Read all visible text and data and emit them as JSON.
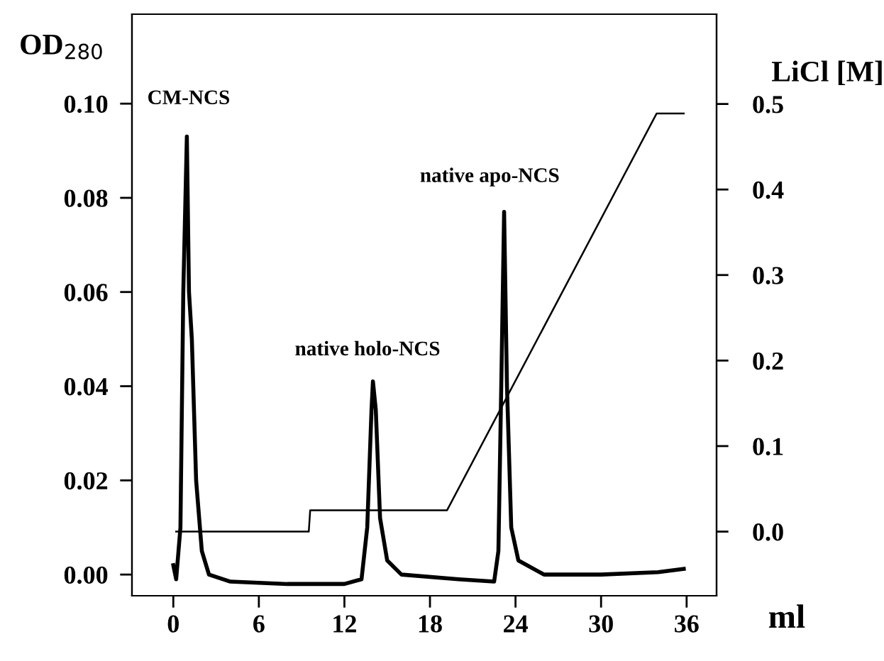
{
  "chart_data": {
    "type": "line",
    "xlabel": "ml",
    "ylabel": "OD$_{280}$",
    "y2label": "LiCl [M]",
    "xlim": [
      -2.9,
      38.1
    ],
    "xticks": [
      0,
      6,
      12,
      18,
      24,
      30,
      36
    ],
    "ylim": [
      -0.0045,
      0.119
    ],
    "yticks": [
      {
        "value": 0,
        "label": "0.00"
      },
      {
        "value": 0.02,
        "label": "0.02"
      },
      {
        "value": 0.04,
        "label": "0.04"
      },
      {
        "value": 0.06,
        "label": "0.06"
      },
      {
        "value": 0.08,
        "label": "0.08"
      },
      {
        "value": 0.1,
        "label": "0.10"
      }
    ],
    "y2lim": [
      -0.075,
      0.605
    ],
    "y2ticks": [
      {
        "value": 0,
        "label": "0.0"
      },
      {
        "value": 0.1,
        "label": "0.1"
      },
      {
        "value": 0.2,
        "label": "0.2"
      },
      {
        "value": 0.3,
        "label": "0.3"
      },
      {
        "value": 0.4,
        "label": "0.4"
      },
      {
        "value": 0.5,
        "label": "0.5"
      }
    ],
    "grid": false,
    "legend": false,
    "marker": "none",
    "line_style": "solid",
    "series": [
      {
        "color": "#000000",
        "x": [
          0.0,
          0.2,
          0.5,
          0.7,
          0.95,
          1.1,
          1.3,
          1.6,
          2.0,
          2.5,
          4,
          8,
          12,
          13.2,
          13.6,
          13.9,
          14.0,
          14.2,
          14.5,
          15,
          16,
          20,
          22.5,
          22.8,
          23.0,
          23.2,
          23.4,
          23.7,
          24.2,
          26,
          30,
          34,
          35.8
        ],
        "values": [
          0.002,
          -0.001,
          0.01,
          0.06,
          0.093,
          0.06,
          0.05,
          0.02,
          0.005,
          0.0,
          -0.0015,
          -0.002,
          -0.002,
          -0.001,
          0.01,
          0.035,
          0.041,
          0.035,
          0.012,
          0.003,
          0.0,
          -0.001,
          -0.0015,
          0.005,
          0.04,
          0.077,
          0.04,
          0.01,
          0.003,
          0.0,
          0.0,
          0.0005,
          0.0012
        ]
      },
      {
        "color": "#000000",
        "axis": "y2",
        "x": [
          0.2,
          9.5,
          9.6,
          19.2,
          33.9,
          35.8
        ],
        "values": [
          0.0,
          0.0,
          0.025,
          0.025,
          0.489,
          0.489
        ]
      }
    ],
    "annotations": [
      "CM-NCS",
      "native holo-NCS",
      "native apo-NCS"
    ]
  }
}
